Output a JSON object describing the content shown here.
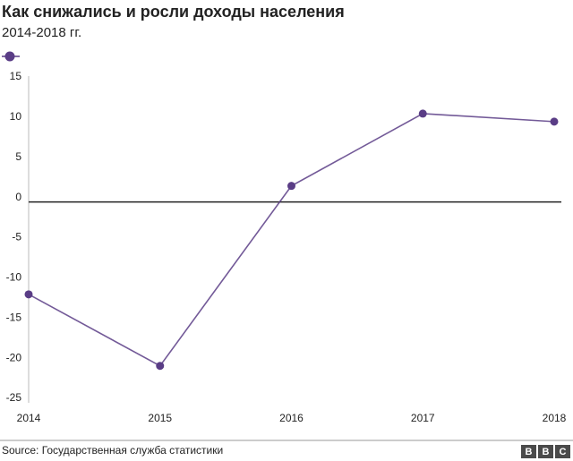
{
  "chart_data": {
    "type": "line",
    "title": "Как снижались и росли доходы населения",
    "subtitle": "2014-2018 гг.",
    "categories": [
      "2014",
      "2015",
      "2016",
      "2017",
      "2018"
    ],
    "series": [
      {
        "color": "#5a3d86",
        "values": [
          -11.5,
          -20.4,
          2,
          11,
          10
        ]
      }
    ],
    "ylim": [
      -25,
      15
    ],
    "yticks": [
      -25,
      -20,
      -15,
      -10,
      -5,
      0,
      5,
      10,
      15
    ],
    "zero_line": true,
    "source": "Source: Государственная служба статистики",
    "logo": [
      "B",
      "B",
      "C"
    ]
  }
}
